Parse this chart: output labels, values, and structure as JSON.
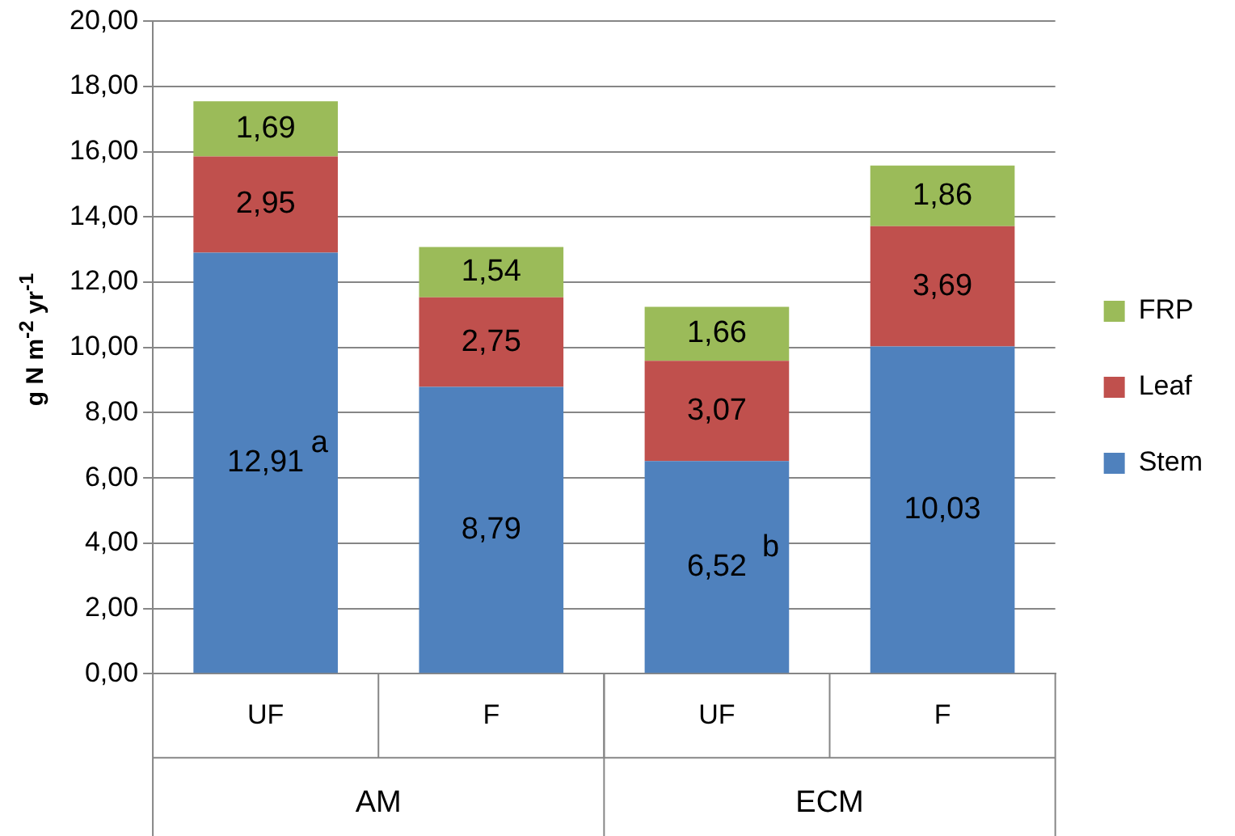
{
  "chart_data": {
    "type": "bar",
    "stacked": true,
    "ylabel": "g N m$^{-2}$ yr$^{-1}$",
    "categories": [
      "UF",
      "F",
      "UF",
      "F"
    ],
    "series": [
      {
        "name": "Stem",
        "color": "#4f81bd",
        "values": [
          12.91,
          8.79,
          6.52,
          10.03
        ],
        "value_labels": [
          "12,91",
          "8,79",
          "6,52",
          "10,03"
        ]
      },
      {
        "name": "Leaf",
        "color": "#c0504d",
        "values": [
          2.95,
          2.75,
          3.07,
          3.69
        ],
        "value_labels": [
          "2,95",
          "2,75",
          "3,07",
          "3,69"
        ]
      },
      {
        "name": "FRP",
        "color": "#9bbb59",
        "values": [
          1.69,
          1.54,
          1.66,
          1.86
        ],
        "value_labels": [
          "1,69",
          "1,54",
          "1,66",
          "1,86"
        ]
      }
    ],
    "ylim": [
      0,
      20
    ],
    "yticks": [
      {
        "value": 0,
        "label": "0,00"
      },
      {
        "value": 2,
        "label": "2,00"
      },
      {
        "value": 4,
        "label": "4,00"
      },
      {
        "value": 6,
        "label": "6,00"
      },
      {
        "value": 8,
        "label": "8,00"
      },
      {
        "value": 10,
        "label": "10,00"
      },
      {
        "value": 12,
        "label": "12,00"
      },
      {
        "value": 14,
        "label": "14,00"
      },
      {
        "value": 16,
        "label": "16,00"
      },
      {
        "value": 18,
        "label": "18,00"
      },
      {
        "value": 20,
        "label": "20,00"
      }
    ],
    "grid": "y",
    "legend": "right",
    "annotations": [
      "a",
      "b",
      "AM",
      "ECM"
    ]
  }
}
